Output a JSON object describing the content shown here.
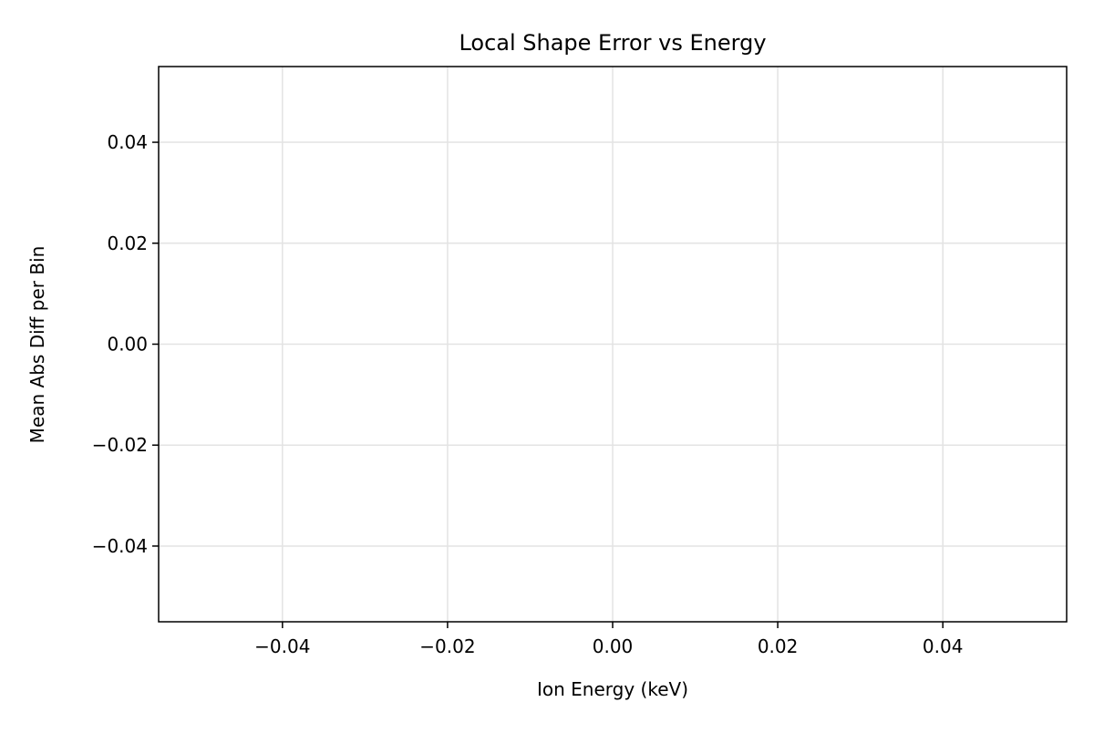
{
  "chart_data": {
    "type": "line",
    "title": "Local Shape Error vs Energy",
    "xlabel": "Ion Energy (keV)",
    "ylabel": "Mean Abs Diff per Bin",
    "xlim": [
      -0.055,
      0.055
    ],
    "ylim": [
      -0.055,
      0.055
    ],
    "x_ticks": [
      -0.04,
      -0.02,
      0.0,
      0.02,
      0.04
    ],
    "x_tick_labels": [
      "−0.04",
      "−0.02",
      "0.00",
      "0.02",
      "0.04"
    ],
    "y_ticks": [
      -0.04,
      -0.02,
      0.0,
      0.02,
      0.04
    ],
    "y_tick_labels": [
      "−0.04",
      "−0.02",
      "0.00",
      "0.02",
      "0.04"
    ],
    "grid": true,
    "series": [],
    "colors": {
      "grid": "#e3e3e3",
      "axes": "#000000",
      "text": "#000000",
      "background": "#ffffff"
    }
  }
}
